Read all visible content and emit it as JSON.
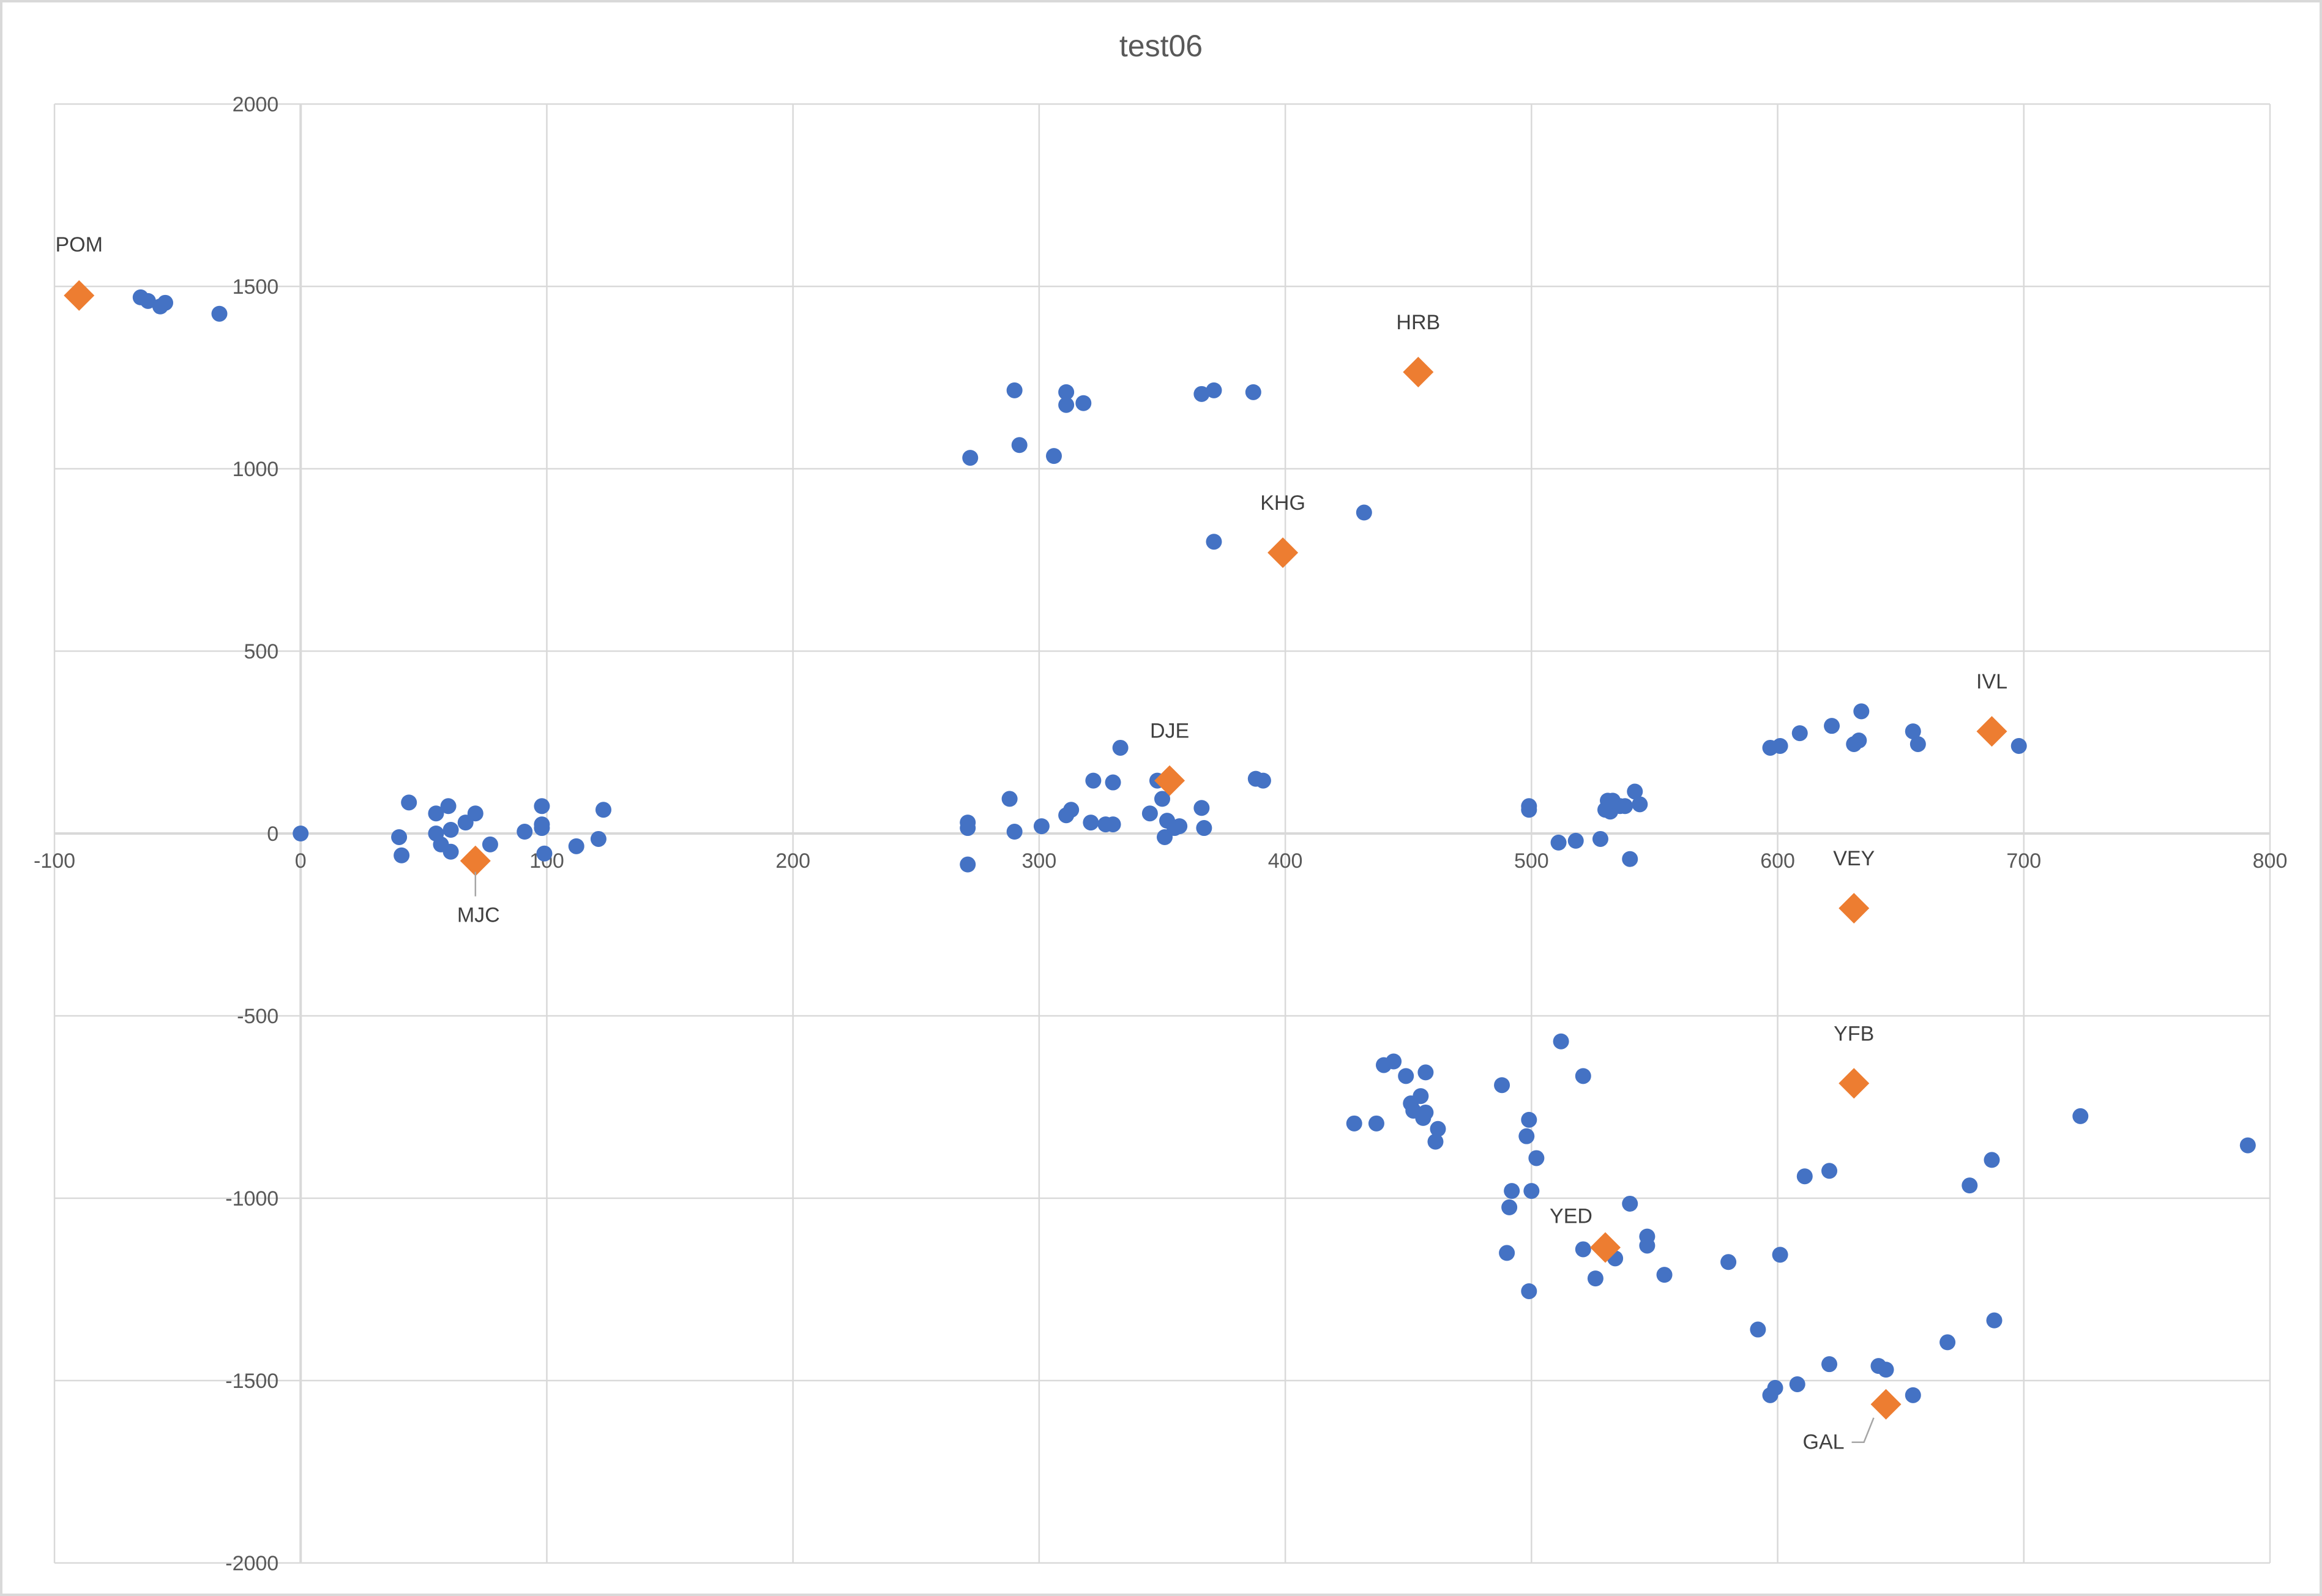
{
  "chart_data": {
    "type": "scatter",
    "title": "test06",
    "xlabel": "",
    "ylabel": "",
    "xlim": [
      -100,
      800
    ],
    "ylim": [
      -2000,
      2000
    ],
    "x_ticks": [
      -100,
      0,
      100,
      200,
      300,
      400,
      500,
      600,
      700,
      800
    ],
    "y_ticks": [
      -2000,
      -1500,
      -1000,
      -500,
      0,
      500,
      1000,
      1500,
      2000
    ],
    "grid": true,
    "legend": "none",
    "colors": {
      "series1": "#4472c4",
      "series2": "#ed7d31"
    },
    "series": [
      {
        "name": "Series 1",
        "marker": "circle",
        "points": [
          [
            -65,
            1470
          ],
          [
            -62,
            1460
          ],
          [
            -57,
            1445
          ],
          [
            -55,
            1455
          ],
          [
            -33,
            1425
          ],
          [
            0,
            0
          ],
          [
            40,
            -10
          ],
          [
            41,
            -60
          ],
          [
            44,
            85
          ],
          [
            55,
            55
          ],
          [
            55,
            0
          ],
          [
            57,
            -30
          ],
          [
            60,
            75
          ],
          [
            61,
            10
          ],
          [
            61,
            -50
          ],
          [
            67,
            30
          ],
          [
            71,
            55
          ],
          [
            71,
            -70
          ],
          [
            77,
            -30
          ],
          [
            91,
            5
          ],
          [
            98,
            75
          ],
          [
            98,
            25
          ],
          [
            98,
            15
          ],
          [
            99,
            -55
          ],
          [
            112,
            -35
          ],
          [
            121,
            -15
          ],
          [
            123,
            65
          ],
          [
            271,
            30
          ],
          [
            271,
            15
          ],
          [
            271,
            -85
          ],
          [
            288,
            95
          ],
          [
            290,
            5
          ],
          [
            301,
            20
          ],
          [
            311,
            50
          ],
          [
            313,
            65
          ],
          [
            321,
            30
          ],
          [
            322,
            145
          ],
          [
            327,
            25
          ],
          [
            330,
            25
          ],
          [
            330,
            140
          ],
          [
            333,
            235
          ],
          [
            345,
            55
          ],
          [
            348,
            145
          ],
          [
            350,
            95
          ],
          [
            351,
            -10
          ],
          [
            352,
            35
          ],
          [
            355,
            15
          ],
          [
            357,
            20
          ],
          [
            366,
            70
          ],
          [
            367,
            15
          ],
          [
            388,
            150
          ],
          [
            391,
            145
          ],
          [
            272,
            1030
          ],
          [
            290,
            1215
          ],
          [
            292,
            1065
          ],
          [
            306,
            1035
          ],
          [
            311,
            1210
          ],
          [
            311,
            1175
          ],
          [
            318,
            1180
          ],
          [
            366,
            1205
          ],
          [
            371,
            1215
          ],
          [
            371,
            800
          ],
          [
            387,
            1210
          ],
          [
            432,
            880
          ],
          [
            499,
            75
          ],
          [
            499,
            65
          ],
          [
            511,
            -25
          ],
          [
            518,
            -20
          ],
          [
            528,
            -15
          ],
          [
            530,
            65
          ],
          [
            531,
            90
          ],
          [
            532,
            60
          ],
          [
            533,
            90
          ],
          [
            536,
            75
          ],
          [
            538,
            75
          ],
          [
            540,
            -70
          ],
          [
            542,
            115
          ],
          [
            544,
            80
          ],
          [
            597,
            235
          ],
          [
            601,
            240
          ],
          [
            609,
            275
          ],
          [
            622,
            295
          ],
          [
            631,
            245
          ],
          [
            633,
            255
          ],
          [
            634,
            335
          ],
          [
            655,
            280
          ],
          [
            657,
            245
          ],
          [
            698,
            240
          ],
          [
            428,
            -795
          ],
          [
            437,
            -795
          ],
          [
            440,
            -635
          ],
          [
            444,
            -625
          ],
          [
            449,
            -665
          ],
          [
            451,
            -740
          ],
          [
            452,
            -760
          ],
          [
            455,
            -720
          ],
          [
            456,
            -780
          ],
          [
            457,
            -655
          ],
          [
            457,
            -765
          ],
          [
            461,
            -845
          ],
          [
            462,
            -810
          ],
          [
            488,
            -690
          ],
          [
            490,
            -1150
          ],
          [
            491,
            -1025
          ],
          [
            492,
            -980
          ],
          [
            498,
            -830
          ],
          [
            499,
            -785
          ],
          [
            499,
            -1255
          ],
          [
            500,
            -980
          ],
          [
            502,
            -890
          ],
          [
            512,
            -570
          ],
          [
            521,
            -665
          ],
          [
            521,
            -1140
          ],
          [
            526,
            -1220
          ],
          [
            534,
            -1165
          ],
          [
            540,
            -1015
          ],
          [
            547,
            -1105
          ],
          [
            547,
            -1130
          ],
          [
            554,
            -1210
          ],
          [
            580,
            -1175
          ],
          [
            592,
            -1360
          ],
          [
            597,
            -1540
          ],
          [
            599,
            -1520
          ],
          [
            601,
            -1155
          ],
          [
            608,
            -1510
          ],
          [
            611,
            -940
          ],
          [
            621,
            -1455
          ],
          [
            621,
            -925
          ],
          [
            641,
            -1460
          ],
          [
            644,
            -1470
          ],
          [
            655,
            -1540
          ],
          [
            669,
            -1395
          ],
          [
            678,
            -965
          ],
          [
            687,
            -895
          ],
          [
            688,
            -1335
          ],
          [
            723,
            -775
          ],
          [
            791,
            -855
          ]
        ]
      },
      {
        "name": "Series 2",
        "marker": "diamond",
        "points": [
          {
            "label": "POM",
            "x": -90,
            "y": 1475
          },
          {
            "label": "MJC",
            "x": 71,
            "y": -75
          },
          {
            "label": "DJE",
            "x": 353,
            "y": 145
          },
          {
            "label": "HRB",
            "x": 454,
            "y": 1265
          },
          {
            "label": "KHG",
            "x": 399,
            "y": 770
          },
          {
            "label": "IVL",
            "x": 687,
            "y": 280
          },
          {
            "label": "VEY",
            "x": 631,
            "y": -205
          },
          {
            "label": "YFB",
            "x": 631,
            "y": -685
          },
          {
            "label": "YED",
            "x": 530,
            "y": -1135
          },
          {
            "label": "GAL",
            "x": 644,
            "y": -1565
          }
        ]
      }
    ]
  }
}
